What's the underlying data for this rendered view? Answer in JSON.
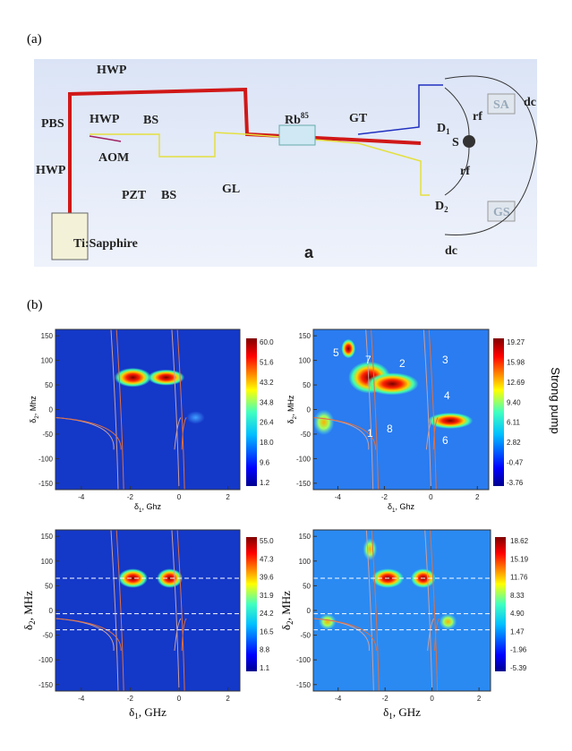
{
  "figure": {
    "panel_a": {
      "label": "(a)",
      "setup": {
        "hwp_top": "HWP",
        "hwp_mid": "HWP",
        "pbs": "PBS",
        "hwp_left": "HWP",
        "aom": "AOM",
        "bs_top": "BS",
        "pzt": "PZT",
        "bs_bottom": "BS",
        "gl": "GL",
        "rb": {
          "text": "Rb",
          "sup": "85"
        },
        "gt": "GT",
        "d1": {
          "text": "D",
          "sub": "1"
        },
        "d2": {
          "text": "D",
          "sub": "2"
        },
        "rf_top": "rf",
        "rf_bottom": "rf",
        "s": "S",
        "sa": "SA",
        "gs": "GS",
        "dc_right": "dc",
        "dc_bottom": "dc",
        "laser": "Ti:Sapphire",
        "tag": "a"
      }
    },
    "panel_b": {
      "label": "(b)",
      "plots": [
        {
          "ylabel": {
            "sym": "δ",
            "sub": "2",
            "rest": ", Mhz"
          },
          "xlabel": {
            "sym": "δ",
            "sub": "1",
            "rest": ", Ghz"
          },
          "yticks": [
            150,
            100,
            50,
            0,
            -50,
            -100,
            -150
          ],
          "xticks": [
            -4,
            -2,
            0,
            2
          ],
          "colorbar": [
            "60.0",
            "51.6",
            "43.2",
            "34.8",
            "26.4",
            "18.0",
            "9.6",
            "1.2"
          ]
        },
        {
          "ylabel": {
            "sym": "δ",
            "sub": "2",
            "rest": ", MHz"
          },
          "xlabel": {
            "sym": "δ",
            "sub": "1",
            "rest": ", Ghz"
          },
          "yticks": [
            150,
            100,
            50,
            0,
            -50,
            -100,
            -150
          ],
          "xticks": [
            -4,
            -2,
            0,
            2
          ],
          "colorbar": [
            "19.27",
            "15.98",
            "12.69",
            "9.40",
            "6.11",
            "2.82",
            "-0.47",
            "-3.76"
          ],
          "annotations": [
            "5",
            "7",
            "2",
            "3",
            "4",
            "1",
            "8",
            "6"
          ],
          "side_label": "Strong pump"
        },
        {
          "ylabel": {
            "sym": "δ",
            "sub": "2",
            "rest": ", MHz"
          },
          "xlabel": {
            "sym": "δ",
            "sub": "1",
            "rest": ", GHz"
          },
          "yticks": [
            150,
            100,
            50,
            0,
            -50,
            -100,
            -150
          ],
          "xticks": [
            -4,
            -2,
            0,
            2
          ],
          "colorbar": [
            "55.0",
            "47.3",
            "39.6",
            "31.9",
            "24.2",
            "16.5",
            "8.8",
            "1.1"
          ]
        },
        {
          "ylabel": {
            "sym": "δ",
            "sub": "2",
            "rest": ", MHz"
          },
          "xlabel": {
            "sym": "δ",
            "sub": "1",
            "rest": ", GHz"
          },
          "yticks": [
            150,
            100,
            50,
            0,
            -50,
            -100,
            -150
          ],
          "xticks": [
            -4,
            -2,
            0,
            2
          ],
          "colorbar": [
            "18.62",
            "15.19",
            "11.76",
            "8.33",
            "4.90",
            "1.47",
            "-1.96",
            "-5.39"
          ]
        }
      ]
    }
  }
}
